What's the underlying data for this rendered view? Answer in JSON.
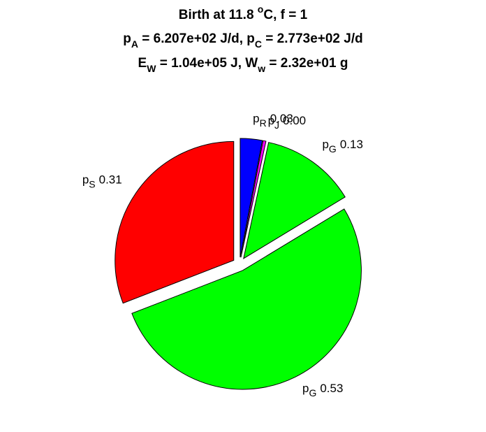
{
  "chart_data": {
    "type": "pie",
    "title_lines": [
      [
        {
          "text": "Birth at 11.8 "
        },
        {
          "text": "o",
          "script": "sup"
        },
        {
          "text": "C, f = 1"
        }
      ],
      [
        {
          "text": "p"
        },
        {
          "text": "A",
          "script": "sub"
        },
        {
          "text": " = 6.207e+02 J/d, p"
        },
        {
          "text": "C",
          "script": "sub"
        },
        {
          "text": " = 2.773e+02 J/d"
        }
      ],
      [
        {
          "text": "E"
        },
        {
          "text": "W",
          "script": "sub"
        },
        {
          "text": " = 1.04e+05 J, W"
        },
        {
          "text": "w",
          "script": "sub"
        },
        {
          "text": " = 2.32e+01 g"
        }
      ]
    ],
    "explode": true,
    "slices": [
      {
        "symbol": "p",
        "subscript": "R",
        "value": 0.03,
        "value_label": "0.03",
        "color": "#0000ff"
      },
      {
        "symbol": "p",
        "subscript": "J",
        "value": 0.004,
        "value_label": "0.00",
        "color": "#ff00ff"
      },
      {
        "symbol": "p",
        "subscript": "G",
        "value": 0.13,
        "value_label": "0.13",
        "color": "#00ff00"
      },
      {
        "symbol": "p",
        "subscript": "G",
        "value": 0.53,
        "value_label": "0.53",
        "color": "#00ff00"
      },
      {
        "symbol": "p",
        "subscript": "S",
        "value": 0.31,
        "value_label": "0.31",
        "color": "#ff0000"
      }
    ]
  }
}
